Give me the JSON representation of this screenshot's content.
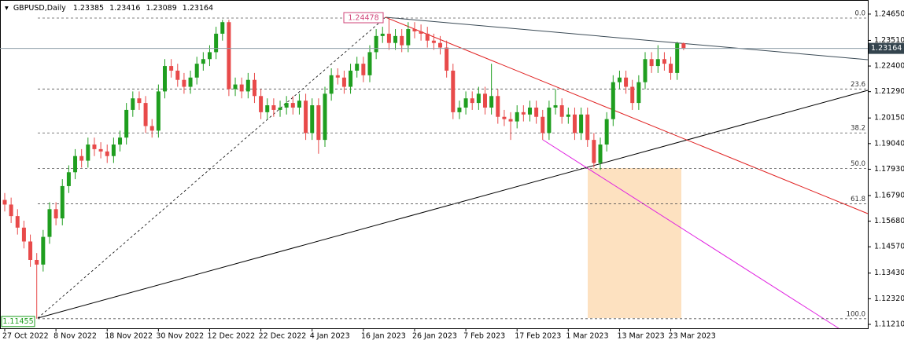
{
  "chart_data": {
    "type": "candlestick",
    "title": "GBPUSD,Daily",
    "categories": [
      "27 Oct 2022",
      null,
      null,
      null,
      null,
      null,
      null,
      null,
      "8 Nov 2022",
      null,
      null,
      null,
      null,
      null,
      null,
      null,
      "18 Nov 2022",
      null,
      null,
      null,
      null,
      null,
      null,
      null,
      "30 Nov 2022",
      null,
      null,
      null,
      null,
      null,
      null,
      null,
      "12 Dec 2022",
      null,
      null,
      null,
      null,
      null,
      null,
      null,
      "22 Dec 2022",
      null,
      null,
      null,
      null,
      null,
      null,
      null,
      "4 Jan 2023",
      null,
      null,
      null,
      null,
      null,
      null,
      null,
      "16 Jan 2023",
      null,
      null,
      null,
      null,
      null,
      null,
      null,
      "26 Jan 2023",
      null,
      null,
      null,
      null,
      null,
      null,
      null,
      "7 Feb 2023",
      null,
      null,
      null,
      null,
      null,
      null,
      null,
      "17 Feb 2023",
      null,
      null,
      null,
      null,
      null,
      null,
      null,
      "1 Mar 2023",
      null,
      null,
      null,
      null,
      null,
      null,
      null,
      "13 Mar 2023",
      null,
      null,
      null,
      null,
      null,
      null,
      null,
      "23 Mar 2023",
      null,
      null
    ],
    "series": [
      {
        "up_color": "#1f9e1f",
        "down_color": "#e84a4a",
        "open": [
          1.166,
          1.164,
          1.159,
          1.154,
          1.148,
          1.14,
          1.138,
          1.15,
          1.162,
          1.158,
          1.172,
          1.178,
          1.185,
          1.183,
          1.19,
          1.188,
          1.187,
          1.185,
          1.19,
          1.193,
          1.205,
          1.21,
          1.208,
          1.198,
          1.196,
          1.213,
          1.224,
          1.222,
          1.218,
          1.215,
          1.219,
          1.225,
          1.227,
          1.23,
          1.238,
          1.243,
          1.214,
          1.216,
          1.213,
          1.218,
          1.211,
          1.204,
          1.207,
          1.205,
          1.206,
          1.208,
          1.206,
          1.209,
          1.195,
          1.207,
          1.192,
          1.212,
          1.22,
          1.219,
          1.215,
          1.222,
          1.225,
          1.22,
          1.23,
          1.237,
          1.238,
          1.234,
          1.237,
          1.233,
          1.24,
          1.239,
          1.238,
          1.235,
          1.234,
          1.232,
          1.222,
          1.204,
          1.206,
          1.21,
          1.208,
          1.212,
          1.206,
          1.211,
          1.202,
          1.201,
          1.2,
          1.204,
          1.203,
          1.206,
          1.202,
          1.195,
          1.206,
          1.207,
          1.202,
          1.203,
          1.195,
          1.203,
          1.192,
          1.182,
          1.19,
          1.201,
          1.217,
          1.219,
          1.215,
          1.208,
          1.217,
          1.227,
          1.224,
          1.227,
          1.225,
          1.221,
          1.23385
        ],
        "high": [
          1.169,
          1.167,
          1.162,
          1.157,
          1.151,
          1.143,
          1.153,
          1.165,
          1.165,
          1.175,
          1.181,
          1.188,
          1.188,
          1.193,
          1.193,
          1.191,
          1.19,
          1.193,
          1.196,
          1.208,
          1.213,
          1.213,
          1.211,
          1.201,
          1.216,
          1.227,
          1.227,
          1.225,
          1.221,
          1.222,
          1.228,
          1.23,
          1.233,
          1.241,
          1.244,
          1.244,
          1.219,
          1.219,
          1.221,
          1.221,
          1.214,
          1.21,
          1.21,
          1.209,
          1.211,
          1.211,
          1.212,
          1.212,
          1.21,
          1.21,
          1.215,
          1.223,
          1.223,
          1.222,
          1.225,
          1.228,
          1.228,
          1.233,
          1.24,
          1.241,
          1.24478,
          1.24,
          1.24,
          1.243,
          1.243,
          1.242,
          1.241,
          1.238,
          1.237,
          1.235,
          1.225,
          1.209,
          1.213,
          1.213,
          1.215,
          1.215,
          1.225,
          1.214,
          1.205,
          1.204,
          1.207,
          1.207,
          1.209,
          1.209,
          1.205,
          1.209,
          1.214,
          1.21,
          1.206,
          1.206,
          1.206,
          1.206,
          1.195,
          1.193,
          1.204,
          1.22,
          1.222,
          1.222,
          1.218,
          1.22,
          1.23,
          1.23,
          1.233,
          1.23,
          1.228,
          1.2345,
          1.23416
        ],
        "low": [
          1.161,
          1.156,
          1.151,
          1.145,
          1.137,
          1.11455,
          1.135,
          1.147,
          1.155,
          1.155,
          1.169,
          1.175,
          1.18,
          1.18,
          1.185,
          1.184,
          1.182,
          1.182,
          1.187,
          1.19,
          1.202,
          1.205,
          1.195,
          1.193,
          1.193,
          1.21,
          1.219,
          1.215,
          1.212,
          1.212,
          1.216,
          1.222,
          1.224,
          1.227,
          1.235,
          1.211,
          1.211,
          1.21,
          1.21,
          1.208,
          1.201,
          1.201,
          1.202,
          1.202,
          1.203,
          1.203,
          1.203,
          1.192,
          1.192,
          1.186,
          1.189,
          1.209,
          1.216,
          1.212,
          1.212,
          1.219,
          1.217,
          1.217,
          1.227,
          1.234,
          1.231,
          1.231,
          1.23,
          1.23,
          1.236,
          1.235,
          1.232,
          1.231,
          1.229,
          1.219,
          1.201,
          1.201,
          1.203,
          1.205,
          1.205,
          1.203,
          1.203,
          1.199,
          1.198,
          1.192,
          1.197,
          1.2,
          1.2,
          1.199,
          1.192,
          1.192,
          1.203,
          1.199,
          1.199,
          1.192,
          1.192,
          1.189,
          1.18,
          1.179,
          1.187,
          1.198,
          1.214,
          1.212,
          1.205,
          1.205,
          1.214,
          1.221,
          1.221,
          1.222,
          1.218,
          1.218,
          1.23089
        ],
        "close": [
          1.164,
          1.159,
          1.154,
          1.148,
          1.14,
          1.138,
          1.15,
          1.162,
          1.158,
          1.172,
          1.178,
          1.185,
          1.183,
          1.19,
          1.188,
          1.187,
          1.185,
          1.19,
          1.193,
          1.205,
          1.21,
          1.208,
          1.198,
          1.196,
          1.213,
          1.224,
          1.222,
          1.218,
          1.215,
          1.219,
          1.225,
          1.227,
          1.23,
          1.238,
          1.243,
          1.214,
          1.216,
          1.213,
          1.218,
          1.211,
          1.204,
          1.207,
          1.205,
          1.206,
          1.208,
          1.206,
          1.209,
          1.195,
          1.207,
          1.192,
          1.212,
          1.22,
          1.219,
          1.215,
          1.222,
          1.225,
          1.22,
          1.23,
          1.237,
          1.238,
          1.234,
          1.237,
          1.233,
          1.24,
          1.239,
          1.238,
          1.235,
          1.234,
          1.232,
          1.222,
          1.204,
          1.206,
          1.21,
          1.208,
          1.212,
          1.206,
          1.211,
          1.202,
          1.201,
          1.2,
          1.204,
          1.203,
          1.206,
          1.202,
          1.195,
          1.206,
          1.207,
          1.202,
          1.203,
          1.195,
          1.203,
          1.192,
          1.182,
          1.19,
          1.201,
          1.217,
          1.219,
          1.215,
          1.208,
          1.217,
          1.227,
          1.224,
          1.227,
          1.225,
          1.221,
          1.23385,
          1.23164
        ]
      }
    ],
    "ylim": [
      1.1104,
      1.2526
    ],
    "yticks": [
      {
        "value": 1.2465,
        "label": "1.24650"
      },
      {
        "value": 1.2351,
        "label": "1.23510"
      },
      {
        "value": 1.224,
        "label": "1.22400"
      },
      {
        "value": 1.2129,
        "label": "1.21290"
      },
      {
        "value": 1.2015,
        "label": "1.20150"
      },
      {
        "value": 1.1904,
        "label": "1.19040"
      },
      {
        "value": 1.1793,
        "label": "1.17930"
      },
      {
        "value": 1.1679,
        "label": "1.16790"
      },
      {
        "value": 1.1568,
        "label": "1.15680"
      },
      {
        "value": 1.1457,
        "label": "1.14570"
      },
      {
        "value": 1.1343,
        "label": "1.13430"
      },
      {
        "value": 1.1232,
        "label": "1.12320"
      },
      {
        "value": 1.1121,
        "label": "1.11210"
      }
    ],
    "price_line_color": "#8e9ea8",
    "fibonacci": {
      "high": 1.24478,
      "low": 1.11455,
      "color": "#555555",
      "levels": [
        {
          "value": 0,
          "label": "0.0"
        },
        23.6,
        38.2,
        {
          "value": 50,
          "label": "50.0"
        },
        61.8,
        {
          "value": 100,
          "label": "100.0"
        }
      ]
    }
  }
}
